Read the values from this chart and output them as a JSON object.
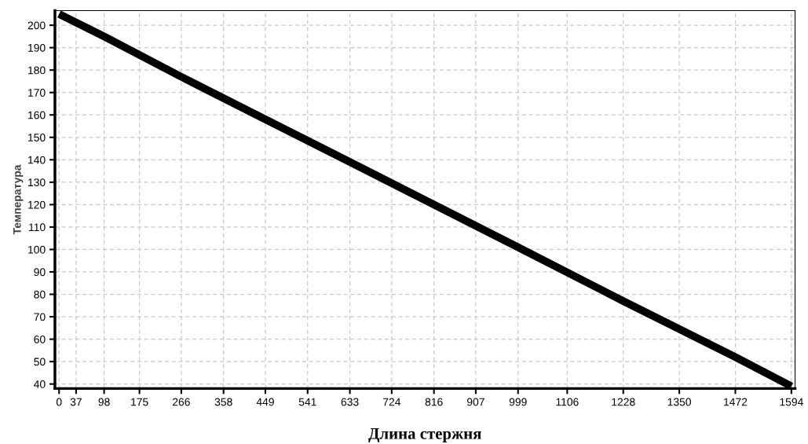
{
  "chart_data": {
    "type": "line",
    "xlabel": "Длина стержня",
    "ylabel": "Температура",
    "series": [
      {
        "color": "#000000",
        "x": [
          0,
          98,
          266,
          449,
          633,
          816,
          999,
          1228,
          1472,
          1594
        ],
        "values": [
          205,
          195,
          177,
          158,
          139,
          120,
          101,
          77,
          52,
          39
        ]
      }
    ],
    "xlim": [
      -9,
      1602
    ],
    "xticks": [
      0,
      37,
      98,
      175,
      266,
      358,
      449,
      541,
      633,
      724,
      816,
      907,
      999,
      1106,
      1228,
      1350,
      1472,
      1594
    ],
    "ylim": [
      38,
      206.5
    ],
    "yticks": [
      40,
      50,
      60,
      70,
      80,
      90,
      100,
      110,
      120,
      130,
      140,
      150,
      160,
      170,
      180,
      190,
      200
    ],
    "grid": true,
    "marker": "none",
    "line_style": "solid"
  }
}
